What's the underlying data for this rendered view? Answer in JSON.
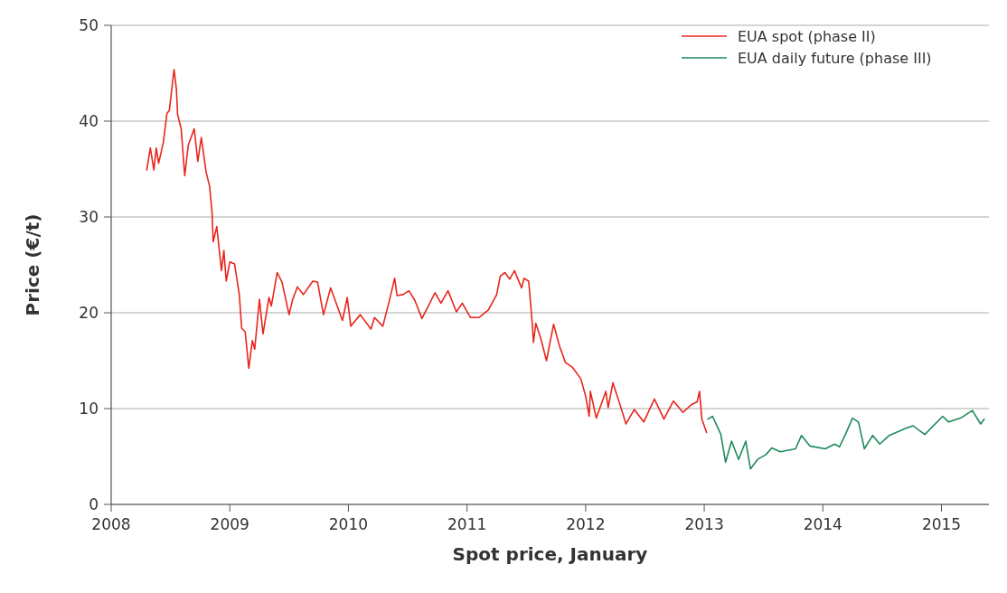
{
  "chart_data": {
    "type": "line",
    "xlabel": "Spot price, January",
    "ylabel": "Price (€/t)",
    "xlim": [
      2008,
      2015.4
    ],
    "xticks": [
      2008,
      2009,
      2010,
      2011,
      2012,
      2013,
      2014,
      2015
    ],
    "ylim": [
      0,
      50
    ],
    "yticks": [
      0,
      10,
      20,
      30,
      40,
      50
    ],
    "grid": "y",
    "legend": "top right",
    "line_style": "solid",
    "marker": "none",
    "series": [
      {
        "name": "EUA spot (phase II)",
        "color": "#e8261c",
        "x": [
          2008.3,
          2008.33,
          2008.36,
          2008.38,
          2008.4,
          2008.44,
          2008.47,
          2008.49,
          2008.53,
          2008.55,
          2008.56,
          2008.59,
          2008.62,
          2008.65,
          2008.7,
          2008.73,
          2008.76,
          2008.8,
          2008.83,
          2008.85,
          2008.86,
          2008.89,
          2008.93,
          2008.95,
          2008.97,
          2009.0,
          2009.04,
          2009.08,
          2009.1,
          2009.13,
          2009.16,
          2009.19,
          2009.21,
          2009.25,
          2009.28,
          2009.33,
          2009.35,
          2009.4,
          2009.44,
          2009.5,
          2009.53,
          2009.57,
          2009.62,
          2009.7,
          2009.74,
          2009.79,
          2009.85,
          2009.95,
          2009.99,
          2010.02,
          2010.1,
          2010.19,
          2010.22,
          2010.29,
          2010.34,
          2010.39,
          2010.41,
          2010.46,
          2010.51,
          2010.56,
          2010.62,
          2010.67,
          2010.73,
          2010.78,
          2010.84,
          2010.91,
          2010.96,
          2011.03,
          2011.1,
          2011.18,
          2011.25,
          2011.28,
          2011.32,
          2011.36,
          2011.4,
          2011.46,
          2011.48,
          2011.52,
          2011.55,
          2011.56,
          2011.58,
          2011.62,
          2011.67,
          2011.73,
          2011.78,
          2011.83,
          2011.89,
          2011.96,
          2012.0,
          2012.03,
          2012.04,
          2012.09,
          2012.17,
          2012.19,
          2012.23,
          2012.29,
          2012.34,
          2012.41,
          2012.49,
          2012.58,
          2012.66,
          2012.74,
          2012.82,
          2012.89,
          2012.94,
          2012.96,
          2012.98,
          2013.02
        ],
        "values": [
          34.9,
          37.2,
          34.9,
          37.2,
          35.6,
          37.8,
          40.8,
          41.1,
          45.4,
          43.3,
          40.7,
          39.2,
          34.3,
          37.5,
          39.2,
          35.8,
          38.3,
          34.7,
          33.2,
          30.5,
          27.4,
          29.0,
          24.4,
          26.5,
          23.3,
          25.3,
          25.1,
          21.9,
          18.4,
          18.0,
          14.2,
          17.1,
          16.2,
          21.4,
          17.8,
          21.6,
          20.7,
          24.2,
          23.2,
          19.8,
          21.4,
          22.7,
          21.9,
          23.3,
          23.2,
          19.8,
          22.6,
          19.2,
          21.6,
          18.6,
          19.8,
          18.3,
          19.5,
          18.6,
          21.0,
          23.6,
          21.8,
          21.9,
          22.3,
          21.3,
          19.4,
          20.6,
          22.1,
          21.0,
          22.3,
          20.1,
          21.0,
          19.5,
          19.5,
          20.3,
          21.9,
          23.8,
          24.2,
          23.5,
          24.4,
          22.6,
          23.6,
          23.3,
          18.9,
          16.9,
          18.9,
          17.4,
          15.0,
          18.8,
          16.5,
          14.8,
          14.3,
          13.1,
          11.3,
          9.2,
          11.8,
          9.0,
          11.8,
          10.1,
          12.7,
          10.4,
          8.4,
          9.9,
          8.6,
          11.0,
          8.9,
          10.8,
          9.6,
          10.4,
          10.7,
          11.8,
          8.9,
          7.5
        ]
      },
      {
        "name": "EUA daily future (phase III)",
        "color": "#1e8a5a",
        "x": [
          2013.03,
          2013.07,
          2013.14,
          2013.18,
          2013.23,
          2013.29,
          2013.35,
          2013.39,
          2013.45,
          2013.52,
          2013.57,
          2013.64,
          2013.77,
          2013.82,
          2013.89,
          2014.02,
          2014.1,
          2014.14,
          2014.19,
          2014.25,
          2014.3,
          2014.35,
          2014.42,
          2014.48,
          2014.56,
          2014.69,
          2014.76,
          2014.86,
          2015.01,
          2015.06,
          2015.16,
          2015.26,
          2015.33,
          2015.36
        ],
        "values": [
          8.9,
          9.2,
          7.3,
          4.4,
          6.6,
          4.7,
          6.6,
          3.7,
          4.7,
          5.2,
          5.9,
          5.5,
          5.8,
          7.2,
          6.1,
          5.8,
          6.3,
          6.0,
          7.3,
          9.0,
          8.6,
          5.8,
          7.2,
          6.3,
          7.2,
          7.9,
          8.2,
          7.3,
          9.2,
          8.6,
          9.0,
          9.8,
          8.4,
          8.9
        ]
      }
    ]
  }
}
